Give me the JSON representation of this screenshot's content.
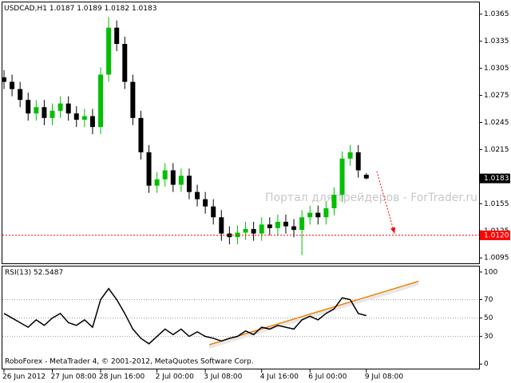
{
  "chart_data": [
    {
      "type": "candlestick",
      "symbol": "USDCAD,H1",
      "up_color": "#00c000",
      "down_color": "#000000",
      "open": [
        1.0295,
        1.029,
        1.0282,
        1.027,
        1.0255,
        1.0262,
        1.025,
        1.0258,
        1.0266,
        1.0255,
        1.0248,
        1.0252,
        1.024,
        1.0298,
        1.035,
        1.0332,
        1.029,
        1.025,
        1.0212,
        1.0175,
        1.0182,
        1.0192,
        1.0176,
        1.0186,
        1.0168,
        1.016,
        1.0152,
        1.014,
        1.0122,
        1.0118,
        1.0123,
        1.0127,
        1.0122,
        1.0132,
        1.0128,
        1.0135,
        1.013,
        1.0126,
        1.014,
        1.0145,
        1.014,
        1.015,
        1.0165,
        1.0205,
        1.0212,
        1.0187
      ],
      "high": [
        1.0303,
        1.0298,
        1.029,
        1.0278,
        1.027,
        1.027,
        1.0266,
        1.0274,
        1.0274,
        1.0263,
        1.026,
        1.026,
        1.0306,
        1.0362,
        1.0358,
        1.034,
        1.0298,
        1.0258,
        1.022,
        1.019,
        1.02,
        1.02,
        1.0194,
        1.0194,
        1.0176,
        1.0168,
        1.016,
        1.0148,
        1.013,
        1.0131,
        1.0135,
        1.0135,
        1.014,
        1.014,
        1.0143,
        1.0143,
        1.0138,
        1.0148,
        1.0153,
        1.0153,
        1.0158,
        1.0173,
        1.0213,
        1.022,
        1.022,
        1.0189
      ],
      "low": [
        1.0282,
        1.0274,
        1.0262,
        1.0247,
        1.0247,
        1.0242,
        1.0242,
        1.025,
        1.0247,
        1.024,
        1.024,
        1.0232,
        1.0232,
        1.029,
        1.0324,
        1.0282,
        1.0242,
        1.0204,
        1.0167,
        1.0167,
        1.0174,
        1.0168,
        1.0168,
        1.016,
        1.0152,
        1.0144,
        1.0132,
        1.0114,
        1.011,
        1.011,
        1.0115,
        1.0114,
        1.0114,
        1.012,
        1.012,
        1.0122,
        1.0118,
        1.0098,
        1.0132,
        1.0132,
        1.0132,
        1.0142,
        1.0157,
        1.0197,
        1.0184,
        1.0182
      ],
      "close": [
        1.029,
        1.0282,
        1.027,
        1.0255,
        1.0262,
        1.025,
        1.0258,
        1.0266,
        1.0255,
        1.0248,
        1.0252,
        1.024,
        1.0298,
        1.035,
        1.0332,
        1.029,
        1.025,
        1.0212,
        1.0175,
        1.0182,
        1.0192,
        1.0176,
        1.0186,
        1.0168,
        1.016,
        1.0152,
        1.014,
        1.0122,
        1.0118,
        1.0123,
        1.0127,
        1.0122,
        1.0132,
        1.0128,
        1.0135,
        1.013,
        1.0126,
        1.014,
        1.0145,
        1.014,
        1.015,
        1.0165,
        1.0205,
        1.0212,
        1.0192,
        1.0183
      ],
      "xlim": [
        0,
        59
      ],
      "xticks": [
        {
          "value": 0,
          "label": "26 Jun 2012"
        },
        {
          "value": 6,
          "label": "27 Jun 08:00"
        },
        {
          "value": 12,
          "label": "28 Jun 16:00"
        },
        {
          "value": 19,
          "label": "2 Jul 00:00"
        },
        {
          "value": 25,
          "label": "3 Jul 08:00"
        },
        {
          "value": 32,
          "label": "4 Jul 16:00"
        },
        {
          "value": 38,
          "label": "6 Jul 00:00"
        },
        {
          "value": 45,
          "label": "9 Jul 08:00"
        }
      ],
      "ylim": [
        1.0089,
        1.0378
      ],
      "yticks": [
        1.0365,
        1.0335,
        1.0305,
        1.0275,
        1.0245,
        1.0215,
        1.0185,
        1.0155,
        1.0125,
        1.0095
      ],
      "level": {
        "value": 1.012,
        "label": "1.0120",
        "color": "#ff0000"
      },
      "arrow": {
        "x": [
          46.3,
          48.5
        ],
        "values": [
          1.0191,
          1.0122
        ],
        "color": "#ff0000"
      },
      "watermark": "Портал для трейдеров - ForTrader.ru",
      "footer": "RoboForex - MetaTrader 4, © 2001-2012, MetaQuotes Software Corp."
    },
    {
      "type": "line",
      "title": "RSI(13)",
      "color": "#000000",
      "values": [
        55,
        50,
        45,
        40,
        48,
        42,
        50,
        55,
        45,
        42,
        48,
        40,
        70,
        82,
        70,
        55,
        38,
        28,
        22,
        30,
        38,
        32,
        38,
        30,
        35,
        30,
        28,
        25,
        28,
        30,
        36,
        32,
        40,
        38,
        42,
        40,
        38,
        48,
        52,
        48,
        55,
        60,
        72,
        70,
        55,
        52.5487
      ],
      "xlim": [
        0,
        59
      ],
      "ylim": [
        -5,
        106
      ],
      "yticks": [
        100,
        70,
        50,
        30,
        0
      ],
      "trendline": {
        "x": [
          25.5,
          51.5
        ],
        "values": [
          21,
          90
        ],
        "color": "#f08000"
      }
    }
  ]
}
